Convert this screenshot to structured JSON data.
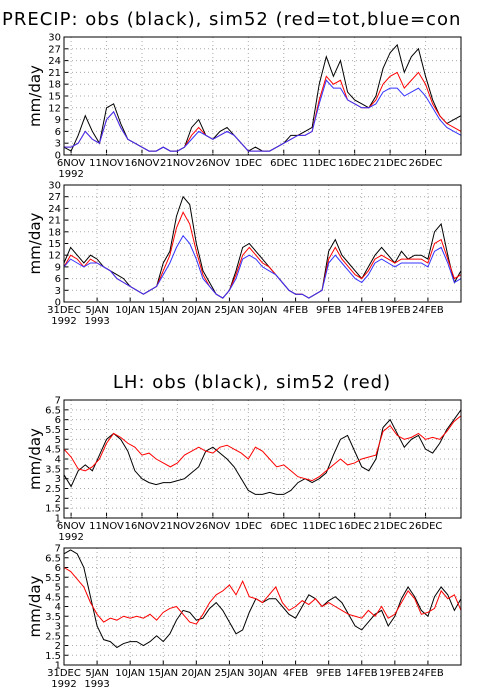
{
  "chart_data": [
    {
      "type": "line",
      "title": "PRECIP: obs (black), sim52 (red=tot,blue=con",
      "ylabel": "mm/day",
      "grid": true,
      "xlim": [
        0,
        56
      ],
      "ylim": [
        0,
        30
      ],
      "yticks": [
        0,
        3,
        6,
        9,
        12,
        15,
        18,
        21,
        24,
        27,
        30
      ],
      "xticks": [
        {
          "value": 1,
          "label": "6NOV"
        },
        {
          "value": 6,
          "label": "11NOV"
        },
        {
          "value": 11,
          "label": "16NOV"
        },
        {
          "value": 16,
          "label": "21NOV"
        },
        {
          "value": 21,
          "label": "26NOV"
        },
        {
          "value": 26,
          "label": "1DEC"
        },
        {
          "value": 31,
          "label": "6DEC"
        },
        {
          "value": 36,
          "label": "11DEC"
        },
        {
          "value": 41,
          "label": "16DEC"
        },
        {
          "value": 46,
          "label": "21DEC"
        },
        {
          "value": 51,
          "label": "26DEC"
        }
      ],
      "year_labels": [
        {
          "value": 1,
          "label": "1992"
        }
      ],
      "series": [
        {
          "color": "#000000",
          "values": [
            2,
            1,
            5,
            10,
            6,
            3,
            12,
            13,
            8,
            4,
            3,
            2,
            1,
            1,
            2,
            1,
            1,
            2,
            7,
            9,
            5,
            4,
            6,
            7,
            5,
            3,
            1,
            2,
            1,
            1,
            2,
            3,
            5,
            5,
            6,
            7,
            18,
            25,
            20,
            24,
            16,
            14,
            13,
            12,
            15,
            22,
            26,
            28,
            21,
            25,
            27,
            20,
            14,
            10,
            8,
            9,
            10
          ]
        },
        {
          "color": "#ff0000",
          "values": [
            2,
            2,
            3,
            6,
            4,
            3,
            9,
            11,
            7,
            4,
            3,
            2,
            1,
            1,
            2,
            1,
            1,
            2,
            5,
            7,
            5,
            4,
            5,
            6,
            5,
            3,
            1,
            1,
            1,
            1,
            2,
            3,
            4,
            5,
            5,
            6,
            14,
            20,
            18,
            19,
            14,
            13,
            12,
            12,
            14,
            18,
            20,
            21,
            17,
            19,
            21,
            18,
            13,
            10,
            8,
            7,
            6
          ]
        },
        {
          "color": "#3333ff",
          "values": [
            2,
            2,
            3,
            6,
            4,
            3,
            9,
            11,
            7,
            4,
            3,
            2,
            1,
            1,
            2,
            1,
            1,
            2,
            4,
            6,
            5,
            4,
            5,
            6,
            5,
            3,
            1,
            1,
            1,
            1,
            2,
            3,
            4,
            5,
            5,
            6,
            13,
            19,
            17,
            17,
            14,
            13,
            12,
            12,
            13,
            16,
            17,
            17,
            15,
            16,
            17,
            15,
            12,
            9,
            7,
            6,
            5
          ]
        }
      ]
    },
    {
      "type": "line",
      "ylabel": "mm/day",
      "grid": true,
      "xlim": [
        0,
        60
      ],
      "ylim": [
        0,
        30
      ],
      "yticks": [
        0,
        3,
        6,
        9,
        12,
        15,
        18,
        21,
        24,
        27,
        30
      ],
      "xticks": [
        {
          "value": 0,
          "label": "31DEC"
        },
        {
          "value": 5,
          "label": "5JAN"
        },
        {
          "value": 10,
          "label": "10JAN"
        },
        {
          "value": 15,
          "label": "15JAN"
        },
        {
          "value": 20,
          "label": "20JAN"
        },
        {
          "value": 25,
          "label": "25JAN"
        },
        {
          "value": 30,
          "label": "30JAN"
        },
        {
          "value": 35,
          "label": "4FEB"
        },
        {
          "value": 40,
          "label": "9FEB"
        },
        {
          "value": 45,
          "label": "14FEB"
        },
        {
          "value": 50,
          "label": "19FEB"
        },
        {
          "value": 55,
          "label": "24FEB"
        }
      ],
      "year_labels": [
        {
          "value": 0,
          "label": "1992"
        },
        {
          "value": 5,
          "label": "1993"
        }
      ],
      "series": [
        {
          "color": "#000000",
          "values": [
            10,
            14,
            12,
            10,
            12,
            11,
            9,
            8,
            7,
            6,
            4,
            3,
            2,
            3,
            4,
            10,
            13,
            22,
            27,
            25,
            15,
            8,
            5,
            2,
            1,
            3,
            8,
            14,
            15,
            13,
            11,
            9,
            7,
            5,
            3,
            2,
            2,
            1,
            2,
            3,
            13,
            16,
            12,
            10,
            8,
            6,
            9,
            12,
            14,
            12,
            10,
            13,
            11,
            12,
            12,
            11,
            18,
            20,
            12,
            5,
            8
          ]
        },
        {
          "color": "#ff0000",
          "values": [
            9,
            12,
            11,
            9,
            11,
            10,
            9,
            8,
            6,
            5,
            4,
            3,
            2,
            3,
            4,
            8,
            12,
            19,
            23,
            20,
            13,
            7,
            4,
            2,
            1,
            3,
            7,
            12,
            14,
            12,
            10,
            9,
            7,
            5,
            3,
            2,
            2,
            1,
            2,
            3,
            11,
            14,
            11,
            9,
            7,
            6,
            8,
            11,
            12,
            11,
            10,
            11,
            11,
            11,
            11,
            10,
            15,
            16,
            11,
            6,
            7
          ]
        },
        {
          "color": "#3333ff",
          "values": [
            9,
            11,
            10,
            9,
            10,
            10,
            9,
            8,
            6,
            5,
            4,
            3,
            2,
            3,
            4,
            7,
            10,
            14,
            17,
            15,
            11,
            6,
            4,
            2,
            1,
            3,
            6,
            11,
            12,
            11,
            9,
            8,
            7,
            5,
            3,
            2,
            2,
            1,
            2,
            3,
            10,
            12,
            10,
            8,
            6,
            5,
            7,
            10,
            11,
            10,
            9,
            10,
            10,
            10,
            10,
            9,
            13,
            14,
            10,
            5,
            6
          ]
        }
      ]
    },
    {
      "type": "line",
      "title": "LH: obs (black), sim52 (red)",
      "ylabel": "mm/day",
      "grid": true,
      "xlim": [
        0,
        56
      ],
      "ylim": [
        1,
        7
      ],
      "yticks": [
        1,
        1.5,
        2,
        2.5,
        3,
        3.5,
        4,
        4.5,
        5,
        5.5,
        6,
        6.5,
        7
      ],
      "xticks": [
        {
          "value": 1,
          "label": "6NOV"
        },
        {
          "value": 6,
          "label": "11NOV"
        },
        {
          "value": 11,
          "label": "16NOV"
        },
        {
          "value": 16,
          "label": "21NOV"
        },
        {
          "value": 21,
          "label": "26NOV"
        },
        {
          "value": 26,
          "label": "1DEC"
        },
        {
          "value": 31,
          "label": "6DEC"
        },
        {
          "value": 36,
          "label": "11DEC"
        },
        {
          "value": 41,
          "label": "16DEC"
        },
        {
          "value": 46,
          "label": "21DEC"
        },
        {
          "value": 51,
          "label": "26DEC"
        }
      ],
      "year_labels": [
        {
          "value": 1,
          "label": "1992"
        }
      ],
      "series": [
        {
          "color": "#000000",
          "values": [
            3.2,
            2.6,
            3.4,
            3.7,
            3.4,
            4.2,
            5.0,
            5.3,
            5.0,
            4.4,
            3.4,
            3.0,
            2.8,
            2.7,
            2.8,
            2.8,
            2.9,
            3.0,
            3.3,
            3.6,
            4.4,
            4.6,
            4.3,
            4.0,
            3.6,
            3.0,
            2.4,
            2.2,
            2.2,
            2.3,
            2.2,
            2.2,
            2.4,
            2.8,
            3.0,
            2.8,
            3.0,
            3.3,
            4.2,
            5.0,
            5.2,
            4.4,
            3.6,
            3.4,
            4.0,
            5.6,
            6.0,
            5.3,
            4.6,
            5.0,
            5.2,
            4.5,
            4.3,
            4.8,
            5.5,
            6.0,
            6.5
          ]
        },
        {
          "color": "#ff0000",
          "values": [
            4.5,
            4.1,
            3.5,
            3.4,
            3.6,
            4.0,
            4.8,
            5.3,
            5.1,
            4.8,
            4.6,
            4.2,
            4.3,
            4.0,
            3.8,
            3.6,
            3.8,
            4.2,
            4.4,
            4.6,
            4.4,
            4.3,
            4.6,
            4.7,
            4.5,
            4.3,
            4.0,
            4.6,
            4.4,
            4.0,
            3.6,
            3.7,
            3.4,
            3.1,
            3.0,
            2.9,
            3.1,
            3.4,
            3.7,
            4.0,
            3.7,
            3.8,
            4.0,
            4.1,
            4.2,
            5.4,
            5.7,
            5.2,
            5.0,
            5.1,
            5.3,
            5.0,
            5.1,
            5.0,
            5.4,
            5.9,
            6.2
          ]
        }
      ]
    },
    {
      "type": "line",
      "ylabel": "mm/day",
      "grid": true,
      "xlim": [
        0,
        60
      ],
      "ylim": [
        1,
        7
      ],
      "yticks": [
        1,
        1.5,
        2,
        2.5,
        3,
        3.5,
        4,
        4.5,
        5,
        5.5,
        6,
        6.5,
        7
      ],
      "xticks": [
        {
          "value": 0,
          "label": "31DEC"
        },
        {
          "value": 5,
          "label": "5JAN"
        },
        {
          "value": 10,
          "label": "10JAN"
        },
        {
          "value": 15,
          "label": "15JAN"
        },
        {
          "value": 20,
          "label": "20JAN"
        },
        {
          "value": 25,
          "label": "25JAN"
        },
        {
          "value": 30,
          "label": "30JAN"
        },
        {
          "value": 35,
          "label": "4FEB"
        },
        {
          "value": 40,
          "label": "9FEB"
        },
        {
          "value": 45,
          "label": "14FEB"
        },
        {
          "value": 50,
          "label": "19FEB"
        },
        {
          "value": 55,
          "label": "24FEB"
        }
      ],
      "year_labels": [
        {
          "value": 0,
          "label": "1992"
        },
        {
          "value": 5,
          "label": "1993"
        }
      ],
      "series": [
        {
          "color": "#000000",
          "values": [
            6.7,
            6.9,
            6.7,
            6.0,
            4.5,
            3.0,
            2.3,
            2.2,
            1.9,
            2.1,
            2.2,
            2.2,
            2.0,
            2.2,
            2.5,
            2.2,
            2.6,
            3.3,
            3.8,
            3.7,
            3.3,
            3.4,
            3.9,
            4.2,
            3.8,
            3.2,
            2.6,
            2.8,
            3.7,
            4.4,
            4.2,
            4.4,
            4.4,
            4.0,
            3.6,
            3.4,
            4.0,
            4.6,
            4.4,
            4.0,
            4.3,
            4.5,
            4.2,
            3.6,
            3.0,
            2.8,
            3.2,
            3.6,
            3.8,
            3.0,
            3.5,
            4.4,
            5.0,
            4.5,
            3.8,
            3.5,
            4.5,
            5.0,
            4.6,
            3.8,
            4.4
          ]
        },
        {
          "color": "#ff0000",
          "values": [
            6.0,
            5.8,
            5.4,
            5.0,
            4.2,
            3.6,
            3.2,
            3.4,
            3.3,
            3.5,
            3.4,
            3.5,
            3.4,
            3.6,
            3.3,
            3.7,
            3.9,
            4.0,
            3.6,
            3.2,
            3.1,
            3.6,
            4.2,
            4.6,
            4.8,
            5.1,
            4.6,
            5.3,
            4.5,
            4.4,
            4.2,
            4.6,
            5.0,
            4.2,
            3.8,
            4.0,
            4.3,
            4.1,
            4.4,
            4.0,
            4.2,
            4.0,
            3.8,
            3.6,
            3.5,
            3.4,
            3.8,
            3.5,
            4.0,
            3.4,
            3.6,
            4.2,
            4.8,
            4.4,
            3.6,
            3.7,
            3.9,
            4.8,
            4.4,
            4.6,
            3.8
          ]
        }
      ]
    }
  ]
}
